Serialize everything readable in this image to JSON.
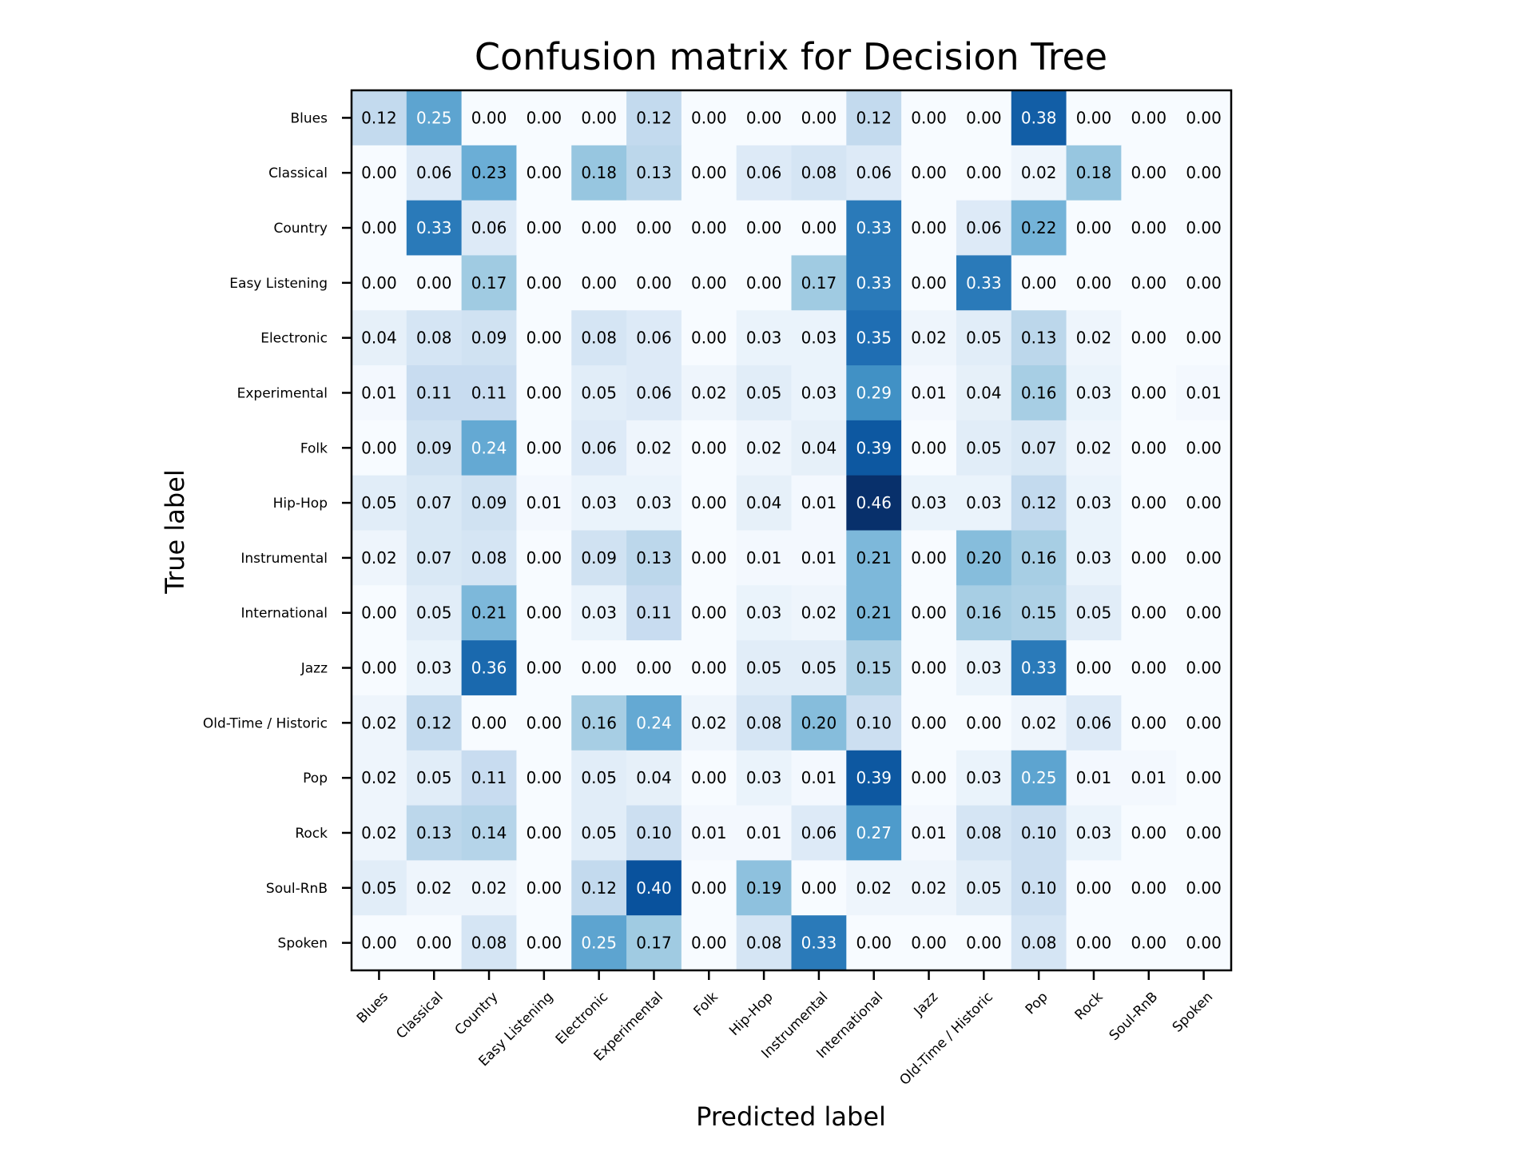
{
  "chart_data": {
    "type": "heatmap",
    "title": "Confusion matrix for Decision Tree",
    "xlabel": "Predicted label",
    "ylabel": "True label",
    "colormap": "Blues",
    "colors": {
      "low": "#f7fbff",
      "high": "#08306b"
    },
    "vmin": 0,
    "vmax": 0.46,
    "x_categories": [
      "Blues",
      "Classical",
      "Country",
      "Easy Listening",
      "Electronic",
      "Experimental",
      "Folk",
      "Hip-Hop",
      "Instrumental",
      "International",
      "Jazz",
      "Old-Time / Historic",
      "Pop",
      "Rock",
      "Soul-RnB",
      "Spoken"
    ],
    "y_categories": [
      "Blues",
      "Classical",
      "Country",
      "Easy Listening",
      "Electronic",
      "Experimental",
      "Folk",
      "Hip-Hop",
      "Instrumental",
      "International",
      "Jazz",
      "Old-Time / Historic",
      "Pop",
      "Rock",
      "Soul-RnB",
      "Spoken"
    ],
    "values": [
      [
        0.12,
        0.25,
        0.0,
        0.0,
        0.0,
        0.12,
        0.0,
        0.0,
        0.0,
        0.12,
        0.0,
        0.0,
        0.38,
        0.0,
        0.0,
        0.0
      ],
      [
        0.0,
        0.06,
        0.23,
        0.0,
        0.18,
        0.13,
        0.0,
        0.06,
        0.08,
        0.06,
        0.0,
        0.0,
        0.02,
        0.18,
        0.0,
        0.0
      ],
      [
        0.0,
        0.33,
        0.06,
        0.0,
        0.0,
        0.0,
        0.0,
        0.0,
        0.0,
        0.33,
        0.0,
        0.06,
        0.22,
        0.0,
        0.0,
        0.0
      ],
      [
        0.0,
        0.0,
        0.17,
        0.0,
        0.0,
        0.0,
        0.0,
        0.0,
        0.17,
        0.33,
        0.0,
        0.33,
        0.0,
        0.0,
        0.0,
        0.0
      ],
      [
        0.04,
        0.08,
        0.09,
        0.0,
        0.08,
        0.06,
        0.0,
        0.03,
        0.03,
        0.35,
        0.02,
        0.05,
        0.13,
        0.02,
        0.0,
        0.0
      ],
      [
        0.01,
        0.11,
        0.11,
        0.0,
        0.05,
        0.06,
        0.02,
        0.05,
        0.03,
        0.29,
        0.01,
        0.04,
        0.16,
        0.03,
        0.0,
        0.01
      ],
      [
        0.0,
        0.09,
        0.24,
        0.0,
        0.06,
        0.02,
        0.0,
        0.02,
        0.04,
        0.39,
        0.0,
        0.05,
        0.07,
        0.02,
        0.0,
        0.0
      ],
      [
        0.05,
        0.07,
        0.09,
        0.01,
        0.03,
        0.03,
        0.0,
        0.04,
        0.01,
        0.46,
        0.03,
        0.03,
        0.12,
        0.03,
        0.0,
        0.0
      ],
      [
        0.02,
        0.07,
        0.08,
        0.0,
        0.09,
        0.13,
        0.0,
        0.01,
        0.01,
        0.21,
        0.0,
        0.2,
        0.16,
        0.03,
        0.0,
        0.0
      ],
      [
        0.0,
        0.05,
        0.21,
        0.0,
        0.03,
        0.11,
        0.0,
        0.03,
        0.02,
        0.21,
        0.0,
        0.16,
        0.15,
        0.05,
        0.0,
        0.0
      ],
      [
        0.0,
        0.03,
        0.36,
        0.0,
        0.0,
        0.0,
        0.0,
        0.05,
        0.05,
        0.15,
        0.0,
        0.03,
        0.33,
        0.0,
        0.0,
        0.0
      ],
      [
        0.02,
        0.12,
        0.0,
        0.0,
        0.16,
        0.24,
        0.02,
        0.08,
        0.2,
        0.1,
        0.0,
        0.0,
        0.02,
        0.06,
        0.0,
        0.0
      ],
      [
        0.02,
        0.05,
        0.11,
        0.0,
        0.05,
        0.04,
        0.0,
        0.03,
        0.01,
        0.39,
        0.0,
        0.03,
        0.25,
        0.01,
        0.01,
        0.0
      ],
      [
        0.02,
        0.13,
        0.14,
        0.0,
        0.05,
        0.1,
        0.01,
        0.01,
        0.06,
        0.27,
        0.01,
        0.08,
        0.1,
        0.03,
        0.0,
        0.0
      ],
      [
        0.05,
        0.02,
        0.02,
        0.0,
        0.12,
        0.4,
        0.0,
        0.19,
        0.0,
        0.02,
        0.02,
        0.05,
        0.1,
        0.0,
        0.0,
        0.0
      ],
      [
        0.0,
        0.0,
        0.08,
        0.0,
        0.25,
        0.17,
        0.0,
        0.08,
        0.33,
        0.0,
        0.0,
        0.0,
        0.08,
        0.0,
        0.0,
        0.0
      ]
    ]
  }
}
